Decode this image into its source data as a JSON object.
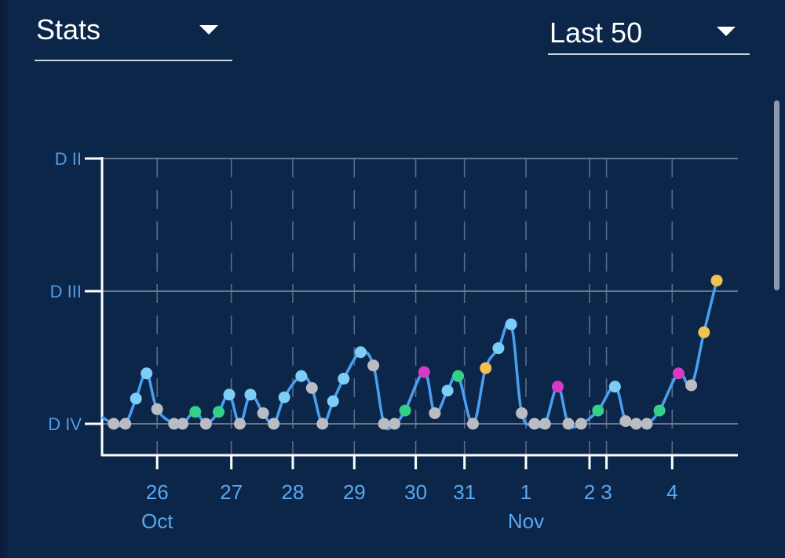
{
  "header": {
    "stat_selector": {
      "value": "Stats",
      "icon": "caret-down-icon"
    },
    "range_selector": {
      "value": "Last 50",
      "icon": "caret-down-icon"
    }
  },
  "colors": {
    "background": "#0c2649",
    "line": "#4a9ff0",
    "axis": "#ffffff",
    "grid": "#5b6f8e",
    "label": "#4f9ce8",
    "point_light_blue": "#7ccdf8",
    "point_gray": "#b9bcc2",
    "point_green": "#34d08a",
    "point_magenta": "#d93ac4",
    "point_yellow": "#f2c14e"
  },
  "chart_data": {
    "type": "line",
    "title": "",
    "xlabel": "",
    "ylabel": "",
    "grid": true,
    "y_ticks": [
      {
        "label": "D II",
        "value": 2
      },
      {
        "label": "D III",
        "value": 1
      },
      {
        "label": "D IV",
        "value": 0
      }
    ],
    "ylim": [
      -0.25,
      2
    ],
    "x_ticks": [
      {
        "label": "26",
        "month": "Oct"
      },
      {
        "label": "27"
      },
      {
        "label": "28"
      },
      {
        "label": "29"
      },
      {
        "label": "30"
      },
      {
        "label": "31"
      },
      {
        "label": "1",
        "month": "Nov"
      },
      {
        "label": "2"
      },
      {
        "label": "3"
      },
      {
        "label": "4"
      }
    ],
    "x_tick_positions": [
      2.6,
      6.1,
      9.0,
      11.9,
      14.8,
      17.1,
      20.0,
      23.0,
      23.8,
      26.9
    ],
    "xlim": [
      0,
      30
    ],
    "series": [
      {
        "points": [
          {
            "x": 0.0,
            "y": 0.05,
            "status": "none"
          },
          {
            "x": 0.55,
            "y": 0.0,
            "status": "gray"
          },
          {
            "x": 1.1,
            "y": 0.0,
            "status": "gray"
          },
          {
            "x": 1.6,
            "y": 0.19,
            "status": "light-blue"
          },
          {
            "x": 2.1,
            "y": 0.38,
            "status": "light-blue"
          },
          {
            "x": 2.6,
            "y": 0.11,
            "status": "gray"
          },
          {
            "x": 3.4,
            "y": 0.0,
            "status": "gray"
          },
          {
            "x": 3.8,
            "y": 0.0,
            "status": "gray"
          },
          {
            "x": 4.4,
            "y": 0.09,
            "status": "green"
          },
          {
            "x": 4.9,
            "y": 0.0,
            "status": "gray"
          },
          {
            "x": 5.5,
            "y": 0.09,
            "status": "green"
          },
          {
            "x": 6.0,
            "y": 0.22,
            "status": "light-blue"
          },
          {
            "x": 6.5,
            "y": 0.0,
            "status": "gray"
          },
          {
            "x": 7.0,
            "y": 0.22,
            "status": "light-blue"
          },
          {
            "x": 7.6,
            "y": 0.08,
            "status": "gray"
          },
          {
            "x": 8.1,
            "y": 0.0,
            "status": "gray"
          },
          {
            "x": 8.6,
            "y": 0.2,
            "status": "light-blue"
          },
          {
            "x": 9.4,
            "y": 0.36,
            "status": "light-blue"
          },
          {
            "x": 9.9,
            "y": 0.27,
            "status": "gray"
          },
          {
            "x": 10.4,
            "y": 0.0,
            "status": "gray"
          },
          {
            "x": 10.9,
            "y": 0.17,
            "status": "light-blue"
          },
          {
            "x": 11.4,
            "y": 0.34,
            "status": "light-blue"
          },
          {
            "x": 12.2,
            "y": 0.54,
            "status": "light-blue"
          },
          {
            "x": 12.8,
            "y": 0.44,
            "status": "gray"
          },
          {
            "x": 13.3,
            "y": 0.0,
            "status": "gray"
          },
          {
            "x": 13.8,
            "y": 0.0,
            "status": "gray"
          },
          {
            "x": 14.3,
            "y": 0.1,
            "status": "green"
          },
          {
            "x": 15.2,
            "y": 0.39,
            "status": "magenta"
          },
          {
            "x": 15.7,
            "y": 0.08,
            "status": "gray"
          },
          {
            "x": 16.3,
            "y": 0.25,
            "status": "light-blue"
          },
          {
            "x": 16.8,
            "y": 0.36,
            "status": "green"
          },
          {
            "x": 17.5,
            "y": 0.0,
            "status": "gray"
          },
          {
            "x": 18.1,
            "y": 0.42,
            "status": "yellow"
          },
          {
            "x": 18.7,
            "y": 0.57,
            "status": "light-blue"
          },
          {
            "x": 19.3,
            "y": 0.75,
            "status": "light-blue"
          },
          {
            "x": 19.8,
            "y": 0.08,
            "status": "gray"
          },
          {
            "x": 20.4,
            "y": 0.0,
            "status": "gray"
          },
          {
            "x": 20.9,
            "y": 0.0,
            "status": "gray"
          },
          {
            "x": 21.5,
            "y": 0.28,
            "status": "magenta"
          },
          {
            "x": 22.0,
            "y": 0.0,
            "status": "gray"
          },
          {
            "x": 22.6,
            "y": 0.0,
            "status": "gray"
          },
          {
            "x": 23.4,
            "y": 0.1,
            "status": "green"
          },
          {
            "x": 24.2,
            "y": 0.28,
            "status": "light-blue"
          },
          {
            "x": 24.7,
            "y": 0.02,
            "status": "gray"
          },
          {
            "x": 25.2,
            "y": 0.0,
            "status": "gray"
          },
          {
            "x": 25.7,
            "y": 0.0,
            "status": "gray"
          },
          {
            "x": 26.3,
            "y": 0.1,
            "status": "green"
          },
          {
            "x": 27.2,
            "y": 0.38,
            "status": "magenta"
          },
          {
            "x": 27.8,
            "y": 0.29,
            "status": "gray"
          },
          {
            "x": 28.4,
            "y": 0.69,
            "status": "yellow"
          },
          {
            "x": 29.0,
            "y": 1.08,
            "status": "yellow"
          }
        ]
      }
    ]
  }
}
